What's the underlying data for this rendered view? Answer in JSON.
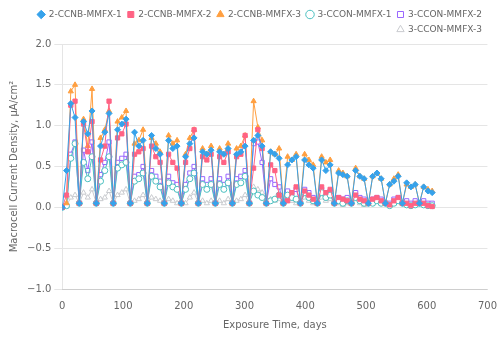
{
  "chart_data": {
    "type": "line",
    "xlabel": "Exposure Time, days",
    "ylabel": "Macrocell Current Density, μA/cm²",
    "xlim": [
      0,
      700
    ],
    "ylim": [
      -1.0,
      2.0
    ],
    "xticks": [
      0,
      100,
      200,
      300,
      400,
      500,
      600,
      700
    ],
    "yticks": [
      {
        "value": -1.0,
        "label": "−1.0"
      },
      {
        "value": -0.5,
        "label": "−0.5"
      },
      {
        "value": 0.0,
        "label": "0.0"
      },
      {
        "value": 0.5,
        "label": "0.5"
      },
      {
        "value": 1.0,
        "label": "1.0"
      },
      {
        "value": 1.5,
        "label": "1.5"
      },
      {
        "value": 2.0,
        "label": "2.0"
      }
    ],
    "grid": "y",
    "legend": "upper right",
    "series": [
      {
        "name": "2-CCNB-MMFX-1",
        "marker": "diamond",
        "x": [
          0,
          7,
          14,
          21,
          28,
          35,
          42,
          49,
          56,
          63,
          70,
          77,
          84,
          91,
          98,
          105,
          112,
          119,
          126,
          133,
          140,
          147,
          154,
          161,
          168,
          175,
          182,
          189,
          196,
          203,
          210,
          217,
          224,
          231,
          238,
          245,
          252,
          259,
          266,
          273,
          280,
          287,
          294,
          301,
          308,
          315,
          322,
          329,
          336,
          343,
          350,
          357,
          364,
          371,
          378,
          385,
          392,
          399,
          406,
          413,
          420,
          427,
          434,
          441,
          448,
          455,
          462,
          469,
          476,
          483,
          490,
          497,
          504,
          511,
          518,
          525,
          532,
          539,
          546,
          553,
          560,
          567,
          574,
          581,
          588,
          595,
          602,
          609
        ],
        "values": [
          0.0,
          0.45,
          1.27,
          1.1,
          0.05,
          1.05,
          0.9,
          1.18,
          0.05,
          0.75,
          0.92,
          1.15,
          0.05,
          0.95,
          1.02,
          1.08,
          0.05,
          0.92,
          0.75,
          0.82,
          0.05,
          0.88,
          0.72,
          0.65,
          0.05,
          0.82,
          0.72,
          0.75,
          0.05,
          0.62,
          0.78,
          0.85,
          0.05,
          0.68,
          0.65,
          0.7,
          0.05,
          0.68,
          0.65,
          0.72,
          0.05,
          0.65,
          0.68,
          0.75,
          0.05,
          0.82,
          0.88,
          0.75,
          0.05,
          0.68,
          0.65,
          0.6,
          0.05,
          0.52,
          0.58,
          0.62,
          0.05,
          0.58,
          0.52,
          0.48,
          0.05,
          0.58,
          0.45,
          0.52,
          0.05,
          0.42,
          0.4,
          0.38,
          0.05,
          0.45,
          0.38,
          0.35,
          0.05,
          0.38,
          0.42,
          0.35,
          0.05,
          0.28,
          0.32,
          0.38,
          0.05,
          0.3,
          0.25,
          0.28,
          0.05,
          0.25,
          0.2,
          0.18
        ]
      },
      {
        "name": "2-CCNB-MMFX-2",
        "marker": "square",
        "x": [
          0,
          7,
          14,
          21,
          28,
          35,
          42,
          49,
          56,
          63,
          70,
          77,
          84,
          91,
          98,
          105,
          112,
          119,
          126,
          133,
          140,
          147,
          154,
          161,
          168,
          175,
          182,
          189,
          196,
          203,
          210,
          217,
          224,
          231,
          238,
          245,
          252,
          259,
          266,
          273,
          280,
          287,
          294,
          301,
          308,
          315,
          322,
          329,
          336,
          343,
          350,
          357,
          364,
          371,
          378,
          385,
          392,
          399,
          406,
          413,
          420,
          427,
          434,
          441,
          448,
          455,
          462,
          469,
          476,
          483,
          490,
          497,
          504,
          511,
          518,
          525,
          532,
          539,
          546,
          553,
          560,
          567,
          574,
          581,
          588,
          595,
          602,
          609
        ],
        "values": [
          0.0,
          0.15,
          1.25,
          1.3,
          0.05,
          1.02,
          0.68,
          1.05,
          0.05,
          0.58,
          0.75,
          1.3,
          0.05,
          0.85,
          0.9,
          1.02,
          0.05,
          0.65,
          0.68,
          0.72,
          0.05,
          0.75,
          0.62,
          0.55,
          0.05,
          0.65,
          0.55,
          0.48,
          0.05,
          0.55,
          0.72,
          0.95,
          0.05,
          0.62,
          0.58,
          0.65,
          0.05,
          0.62,
          0.55,
          0.68,
          0.05,
          0.62,
          0.65,
          0.88,
          0.05,
          0.48,
          0.95,
          0.72,
          0.05,
          0.52,
          0.45,
          0.15,
          0.05,
          0.08,
          0.18,
          0.25,
          0.05,
          0.2,
          0.15,
          0.1,
          0.05,
          0.25,
          0.18,
          0.22,
          0.05,
          0.12,
          0.1,
          0.08,
          0.05,
          0.15,
          0.1,
          0.08,
          0.05,
          0.1,
          0.12,
          0.08,
          0.05,
          0.03,
          0.08,
          0.12,
          0.05,
          0.05,
          0.02,
          0.05,
          0.05,
          0.05,
          0.02,
          0.01
        ]
      },
      {
        "name": "2-CCNB-MMFX-3",
        "marker": "triangle",
        "x": [
          0,
          7,
          14,
          21,
          28,
          35,
          42,
          49,
          56,
          63,
          70,
          77,
          84,
          91,
          98,
          105,
          112,
          119,
          126,
          133,
          140,
          147,
          154,
          161,
          168,
          175,
          182,
          189,
          196,
          203,
          210,
          217,
          224,
          231,
          238,
          245,
          252,
          259,
          266,
          273,
          280,
          287,
          294,
          301,
          308,
          315,
          322,
          329,
          336,
          343,
          350,
          357,
          364,
          371,
          378,
          385,
          392,
          399,
          406,
          413,
          420,
          427,
          434,
          441,
          448,
          455,
          462,
          469,
          476,
          483,
          490,
          497,
          504,
          511,
          518,
          525,
          532,
          539,
          546,
          553,
          560,
          567,
          574,
          581,
          588,
          595,
          602,
          609
        ],
        "values": [
          0.0,
          0.05,
          1.42,
          1.5,
          0.05,
          1.08,
          0.75,
          1.45,
          0.05,
          0.85,
          0.95,
          1.18,
          0.05,
          1.05,
          1.1,
          1.18,
          0.05,
          0.78,
          0.82,
          0.95,
          0.05,
          0.85,
          0.78,
          0.68,
          0.05,
          0.88,
          0.78,
          0.82,
          0.05,
          0.65,
          0.85,
          0.95,
          0.05,
          0.72,
          0.65,
          0.75,
          0.05,
          0.72,
          0.65,
          0.78,
          0.05,
          0.72,
          0.75,
          0.88,
          0.05,
          1.3,
          0.98,
          0.82,
          0.05,
          0.68,
          0.65,
          0.72,
          0.05,
          0.62,
          0.58,
          0.65,
          0.05,
          0.65,
          0.58,
          0.52,
          0.05,
          0.62,
          0.55,
          0.58,
          0.05,
          0.45,
          0.42,
          0.38,
          0.05,
          0.48,
          0.38,
          0.35,
          0.05,
          0.38,
          0.42,
          0.35,
          0.05,
          0.28,
          0.35,
          0.4,
          0.05,
          0.28,
          0.25,
          0.28,
          0.05,
          0.25,
          0.22,
          0.2
        ]
      },
      {
        "name": "3-CCON-MMFX-1",
        "marker": "circle-open",
        "x": [
          0,
          7,
          14,
          21,
          28,
          35,
          42,
          49,
          56,
          63,
          70,
          77,
          84,
          91,
          98,
          105,
          112,
          119,
          126,
          133,
          140,
          147,
          154,
          161,
          168,
          175,
          182,
          189,
          196,
          203,
          210,
          217,
          224,
          231,
          238,
          245,
          252,
          259,
          266,
          273,
          280,
          287,
          294,
          301,
          308,
          315,
          322,
          329,
          336,
          343,
          350,
          357,
          364,
          371,
          378,
          385,
          392,
          399,
          406,
          413,
          420,
          427,
          434,
          441,
          448,
          455,
          462,
          469,
          476,
          483,
          490,
          497,
          504,
          511,
          518,
          525,
          532,
          539,
          546,
          553,
          560,
          567,
          574,
          581,
          588,
          595,
          602,
          609
        ],
        "values": [
          0.0,
          0.02,
          0.6,
          0.78,
          0.05,
          0.55,
          0.35,
          0.62,
          0.05,
          0.32,
          0.45,
          0.62,
          0.05,
          0.48,
          0.52,
          0.55,
          0.05,
          0.32,
          0.35,
          0.42,
          0.05,
          0.38,
          0.32,
          0.25,
          0.05,
          0.3,
          0.25,
          0.22,
          0.05,
          0.22,
          0.35,
          0.42,
          0.05,
          0.28,
          0.22,
          0.28,
          0.05,
          0.28,
          0.22,
          0.3,
          0.05,
          0.28,
          0.3,
          0.38,
          0.05,
          0.2,
          0.15,
          0.12,
          0.05,
          0.08,
          0.1,
          0.15,
          0.05,
          0.15,
          0.12,
          0.1,
          0.05,
          0.18,
          0.12,
          0.08,
          0.05,
          0.18,
          0.12,
          0.15,
          0.05,
          0.08,
          0.05,
          0.08,
          0.05,
          0.12,
          0.08,
          0.05,
          0.05,
          0.05,
          0.08,
          0.05,
          0.05,
          0.02,
          0.05,
          0.08,
          0.05,
          0.03,
          0.02,
          0.03,
          0.05,
          0.03,
          0.02,
          0.02
        ]
      },
      {
        "name": "3-CCON-MMFX-2",
        "marker": "square-open",
        "x": [
          0,
          7,
          14,
          21,
          28,
          35,
          42,
          49,
          56,
          63,
          70,
          77,
          84,
          91,
          98,
          105,
          112,
          119,
          126,
          133,
          140,
          147,
          154,
          161,
          168,
          175,
          182,
          189,
          196,
          203,
          210,
          217,
          224,
          231,
          238,
          245,
          252,
          259,
          266,
          273,
          280,
          287,
          294,
          301,
          308,
          315,
          322,
          329,
          336,
          343,
          350,
          357,
          364,
          371,
          378,
          385,
          392,
          399,
          406,
          413,
          420,
          427,
          434,
          441,
          448,
          455,
          462,
          469,
          476,
          483,
          490,
          497,
          504,
          511,
          518,
          525,
          532,
          539,
          546,
          553,
          560,
          567,
          574,
          581,
          588,
          595,
          602,
          609
        ],
        "values": [
          0.0,
          0.02,
          0.65,
          0.8,
          0.05,
          0.7,
          0.45,
          0.8,
          0.05,
          0.4,
          0.55,
          0.8,
          0.05,
          0.55,
          0.6,
          0.65,
          0.05,
          0.38,
          0.4,
          0.5,
          0.05,
          0.45,
          0.38,
          0.32,
          0.05,
          0.38,
          0.3,
          0.28,
          0.05,
          0.28,
          0.42,
          0.5,
          0.05,
          0.35,
          0.28,
          0.35,
          0.05,
          0.35,
          0.28,
          0.38,
          0.05,
          0.35,
          0.38,
          0.45,
          0.05,
          0.78,
          0.8,
          0.55,
          0.05,
          0.35,
          0.28,
          0.25,
          0.05,
          0.2,
          0.18,
          0.22,
          0.05,
          0.22,
          0.18,
          0.12,
          0.05,
          0.22,
          0.18,
          0.2,
          0.05,
          0.12,
          0.1,
          0.12,
          0.05,
          0.18,
          0.12,
          0.1,
          0.05,
          0.1,
          0.12,
          0.1,
          0.05,
          0.05,
          0.1,
          0.12,
          0.05,
          0.08,
          0.05,
          0.08,
          0.05,
          0.08,
          0.05,
          0.05
        ]
      },
      {
        "name": "3-CCON-MMFX-3",
        "marker": "triangle-open",
        "x": [
          0,
          7,
          14,
          21,
          28,
          35,
          42,
          49,
          56,
          63,
          70,
          77,
          84,
          91,
          98,
          105,
          112,
          119,
          126,
          133,
          140,
          147,
          154,
          161,
          168,
          175,
          182,
          189,
          196,
          203,
          210,
          217,
          224,
          231,
          238,
          245,
          252,
          259,
          266,
          273,
          280,
          287,
          294,
          301,
          308,
          315,
          322,
          329,
          336,
          343,
          350,
          357,
          364,
          371,
          378,
          385,
          392,
          399,
          406,
          413,
          420,
          427,
          434,
          441,
          448,
          455,
          462,
          469,
          476,
          483,
          490,
          497,
          504,
          511,
          518,
          525,
          532,
          539,
          546,
          553,
          560,
          567,
          574,
          581,
          588,
          595,
          602,
          609
        ],
        "values": [
          0.0,
          0.02,
          0.12,
          0.15,
          0.05,
          0.18,
          0.12,
          0.22,
          0.05,
          0.1,
          0.12,
          0.2,
          0.05,
          0.15,
          0.18,
          0.22,
          0.05,
          0.08,
          0.1,
          0.15,
          0.05,
          0.12,
          0.1,
          0.08,
          0.05,
          0.1,
          0.08,
          0.05,
          0.05,
          0.05,
          0.12,
          0.18,
          0.05,
          0.08,
          0.05,
          0.08,
          0.05,
          0.08,
          0.05,
          0.1,
          0.05,
          0.08,
          0.1,
          0.15,
          0.05,
          0.25,
          0.22,
          0.18,
          0.05,
          0.1,
          0.08,
          0.1,
          0.05,
          0.1,
          0.08,
          0.05,
          0.05,
          0.12,
          0.08,
          0.05,
          0.05,
          0.12,
          0.08,
          0.1,
          0.05,
          0.05,
          0.03,
          0.05,
          0.05,
          0.1,
          0.05,
          0.03,
          0.05,
          0.05,
          0.08,
          0.05,
          0.05,
          0.02,
          0.05,
          0.08,
          0.05,
          0.03,
          0.02,
          0.03,
          0.05,
          0.03,
          0.02,
          0.02
        ]
      }
    ]
  }
}
